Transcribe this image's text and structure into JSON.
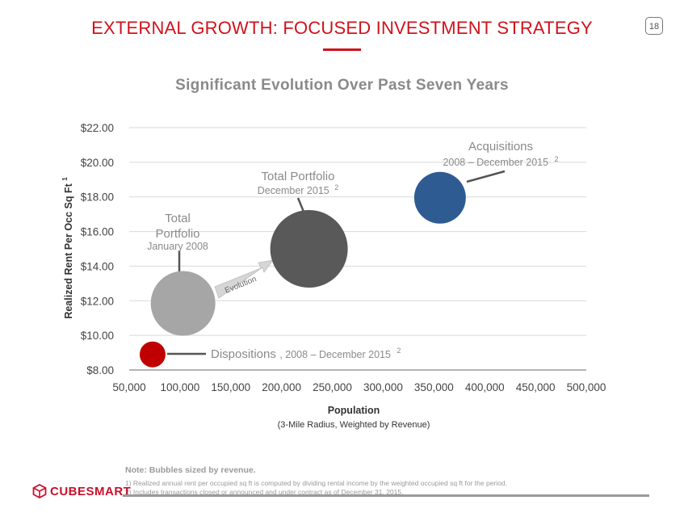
{
  "header": {
    "title": "EXTERNAL GROWTH: FOCUSED INVESTMENT STRATEGY",
    "page_number": "18"
  },
  "chart_data": {
    "type": "scatter",
    "subtitle": "Significant Evolution Over Past Seven Years",
    "xlabel": "Population",
    "xlabel_sub": "(3-Mile Radius, Weighted by Revenue)",
    "ylabel": "Realized Rent Per Occ Sq Ft",
    "ylabel_sup": "1",
    "xlim": [
      50000,
      500000
    ],
    "ylim": [
      8,
      22
    ],
    "x_ticks": [
      50000,
      100000,
      150000,
      200000,
      250000,
      300000,
      350000,
      400000,
      450000,
      500000
    ],
    "x_tick_labels": [
      "50,000",
      "100,000",
      "150,000",
      "200,000",
      "250,000",
      "300,000",
      "350,000",
      "400,000",
      "450,000",
      "500,000"
    ],
    "y_ticks": [
      8,
      10,
      12,
      14,
      16,
      18,
      20,
      22
    ],
    "y_tick_labels": [
      "$8.00",
      "$10.00",
      "$12.00",
      "$14.00",
      "$16.00",
      "$18.00",
      "$20.00",
      "$22.00"
    ],
    "bubbles": [
      {
        "id": "dispositions",
        "x": 73000,
        "y": 8.9,
        "relative_size": 0.2,
        "color": "#c00000"
      },
      {
        "id": "total-2008",
        "x": 103000,
        "y": 11.85,
        "relative_size": 0.5,
        "color": "#a6a6a6"
      },
      {
        "id": "total-2015",
        "x": 227000,
        "y": 15.0,
        "relative_size": 0.6,
        "color": "#595959"
      },
      {
        "id": "acquisitions",
        "x": 356000,
        "y": 17.95,
        "relative_size": 0.4,
        "color": "#2f5b93"
      }
    ],
    "labels": {
      "dispositions_name": "Dispositions",
      "dispositions_period": ", 2008 – December 2015",
      "dispositions_sup": "2",
      "total2008_line1": "Total",
      "total2008_line2": "Portfolio",
      "total2008_line3": "January 2008",
      "total2015_line1": "Total Portfolio",
      "total2015_line2": "December 2015",
      "total2015_sup": "2",
      "acq_line1": "Acquisitions",
      "acq_line2": "2008 – December 2015",
      "acq_sup": "2",
      "evolution": "Evolution"
    }
  },
  "notes": {
    "main": "Note:  Bubbles sized by revenue.",
    "line1": "1) Realized annual rent per occupied sq ft is computed by dividing rental income by the weighted occupied sq ft for the period.",
    "line2": "2) Includes transactions closed or announced and under contract as of December 31, 2015."
  },
  "brand": {
    "name": "CUBESMART",
    "color": "#c8102e"
  }
}
